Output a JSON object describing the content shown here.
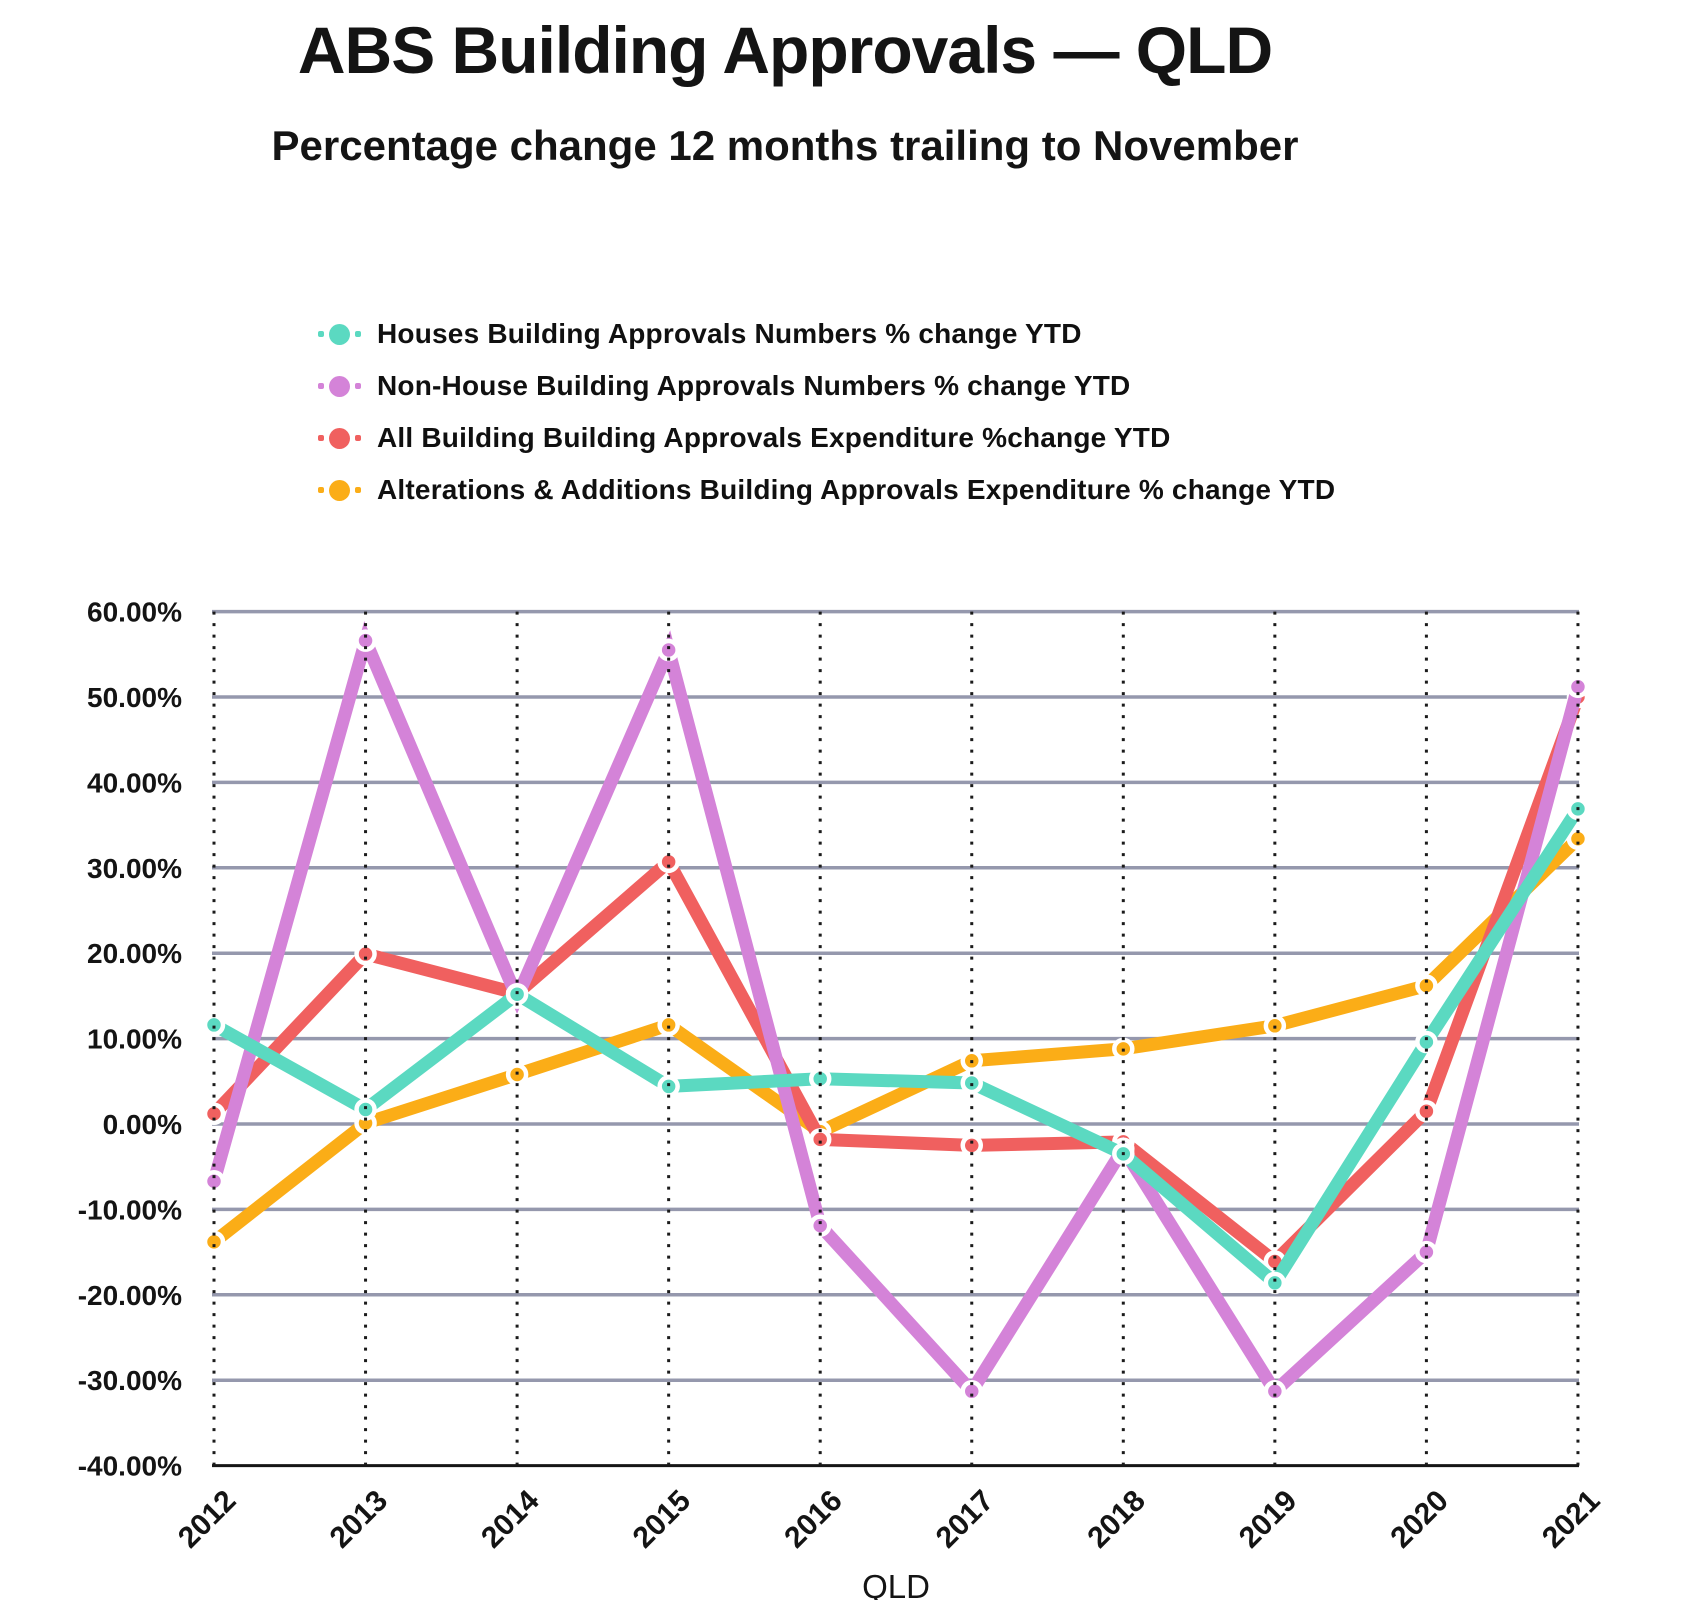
{
  "header": {
    "title": "ABS Building Approvals — QLD",
    "subtitle": "Percentage change 12 months trailing to November"
  },
  "colors": {
    "background": "#ffffff",
    "gridline": "#9598ad",
    "axis_line": "#161616",
    "dotted_line": "#1b1b1b",
    "text": "#141414",
    "houses": "#5bd9c1",
    "non_house": "#d483d8",
    "all_building": "#f0605f",
    "alterations": "#fbad17"
  },
  "chart_data": {
    "type": "line",
    "title": "ABS Building Approvals — QLD",
    "subtitle": "Percentage change 12 months trailing to November",
    "xlabel": "QLD",
    "ylabel": "",
    "x": [
      2012,
      2013,
      2014,
      2015,
      2016,
      2017,
      2018,
      2019,
      2020,
      2021
    ],
    "series": [
      {
        "key": "houses",
        "name": "Houses Building Approvals Numbers % change YTD",
        "color": "#5bd9c1",
        "values": [
          11.6,
          1.7,
          15.2,
          4.4,
          5.3,
          4.8,
          -3.5,
          -18.6,
          9.6,
          36.9
        ]
      },
      {
        "key": "non_house",
        "name": "Non-House Building Approvals Numbers % change YTD",
        "color": "#d483d8",
        "values": [
          -6.7,
          56.6,
          14.8,
          55.5,
          -11.9,
          -31.3,
          -2.9,
          -31.3,
          -15.0,
          51.2
        ]
      },
      {
        "key": "all_building",
        "name": "All Building Building Approvals Expenditure %change YTD",
        "color": "#f0605f",
        "values": [
          1.2,
          19.9,
          15.3,
          30.7,
          -1.8,
          -2.5,
          -2.1,
          -16.1,
          1.5,
          50.0
        ]
      },
      {
        "key": "alterations",
        "name": "Alterations & Additions Building Approvals Expenditure % change YTD",
        "color": "#fbad17",
        "values": [
          -13.8,
          0.1,
          5.8,
          11.6,
          -0.9,
          7.4,
          8.8,
          11.5,
          16.2,
          33.4
        ]
      }
    ],
    "ylim": [
      -40,
      60
    ],
    "ytick_step": 10,
    "y_tick_labels": [
      "60.00%",
      "50.00%",
      "40.00%",
      "30.00%",
      "20.00%",
      "10.00%",
      "0.00%",
      "-10.00%",
      "-20.00%",
      "-30.00%",
      "-40.00%"
    ],
    "x_tick_labels": [
      "2012",
      "2013",
      "2014",
      "2015",
      "2016",
      "2017",
      "2018",
      "2019",
      "2020",
      "2021"
    ],
    "grid": {
      "horizontal": "solid",
      "vertical": "dotted"
    },
    "legend_position": "top-left"
  }
}
